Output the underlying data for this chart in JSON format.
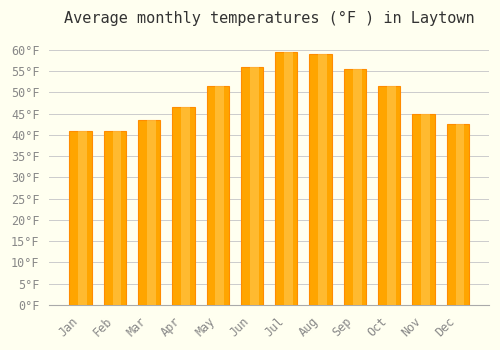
{
  "title": "Average monthly temperatures (°F ) in Laytown",
  "months": [
    "Jan",
    "Feb",
    "Mar",
    "Apr",
    "May",
    "Jun",
    "Jul",
    "Aug",
    "Sep",
    "Oct",
    "Nov",
    "Dec"
  ],
  "values": [
    41,
    41,
    43.5,
    46.5,
    51.5,
    56,
    59.5,
    59,
    55.5,
    51.5,
    45,
    42.5
  ],
  "bar_color": "#FFA500",
  "bar_edge_color": "#FF8C00",
  "background_color": "#FFFFF0",
  "grid_color": "#CCCCCC",
  "text_color": "#888888",
  "ylim": [
    0,
    63
  ],
  "yticks": [
    0,
    5,
    10,
    15,
    20,
    25,
    30,
    35,
    40,
    45,
    50,
    55,
    60
  ],
  "title_fontsize": 11,
  "tick_fontsize": 8.5
}
